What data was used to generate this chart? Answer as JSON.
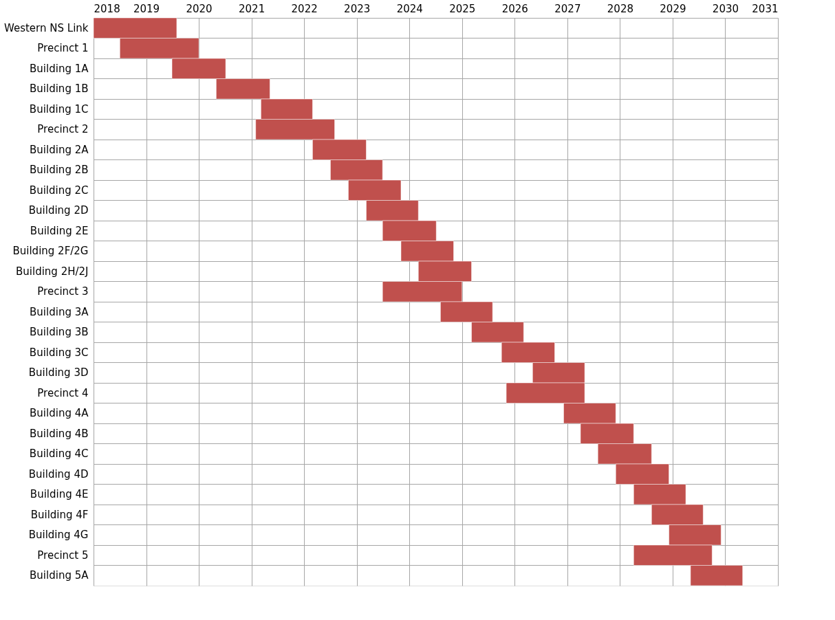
{
  "chart_data": {
    "type": "bar",
    "orientation": "horizontal",
    "categories": [
      "Western NS Link",
      "Precinct 1",
      "Building 1A",
      "Building 1B",
      "Building 1C",
      "Precinct 2",
      "Building 2A",
      "Building 2B",
      "Building 2C",
      "Building 2D",
      "Building 2E",
      "Building 2F/2G",
      "Building 2H/2J",
      "Precinct 3",
      "Building 3A",
      "Building 3B",
      "Building 3C",
      "Building 3D",
      "Precinct 4",
      "Building 4A",
      "Building 4B",
      "Building 4C",
      "Building 4D",
      "Building 4E",
      "Building 4F",
      "Building 4G",
      "Precinct 5",
      "Building 5A"
    ],
    "base": [
      2018.0,
      2018.5,
      2019.49,
      2020.33,
      2021.18,
      2021.08,
      2022.16,
      2022.5,
      2022.84,
      2023.18,
      2023.49,
      2023.84,
      2024.17,
      2023.49,
      2024.59,
      2025.18,
      2025.75,
      2026.34,
      2025.84,
      2026.93,
      2027.25,
      2027.58,
      2027.92,
      2028.26,
      2028.6,
      2028.93,
      2028.26,
      2029.34
    ],
    "values": [
      1.58,
      1.5,
      1.02,
      1.02,
      0.98,
      1.5,
      1.02,
      0.99,
      1.0,
      0.99,
      1.02,
      1.0,
      1.01,
      1.51,
      0.99,
      0.99,
      1.01,
      0.99,
      1.49,
      0.99,
      1.01,
      1.02,
      1.01,
      0.99,
      0.98,
      0.99,
      1.49,
      0.99
    ],
    "color": "#c0504d",
    "xlim": [
      2018,
      2031
    ],
    "xticks": [
      2018,
      2019,
      2020,
      2021,
      2022,
      2023,
      2024,
      2025,
      2026,
      2027,
      2028,
      2029,
      2030,
      2031
    ],
    "grid": true
  }
}
